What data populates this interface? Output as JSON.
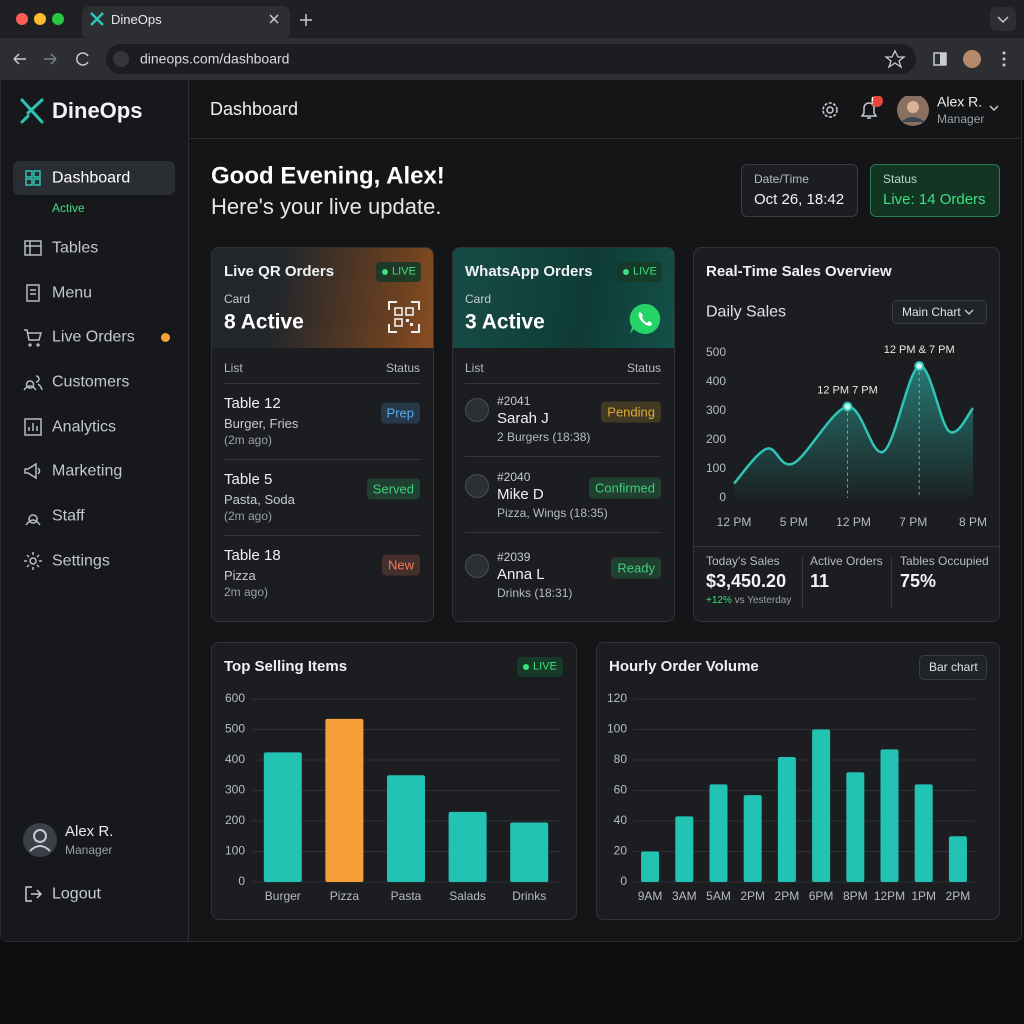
{
  "browser": {
    "tab_title": "DineOps",
    "url": "dineops.com/dashboard"
  },
  "sidebar": {
    "brand": "DineOps",
    "nav": [
      {
        "label": "Dashboard",
        "status": "Active"
      },
      {
        "label": "Tables"
      },
      {
        "label": "Menu"
      },
      {
        "label": "Live Orders",
        "alert": true
      },
      {
        "label": "Customers"
      },
      {
        "label": "Analytics"
      },
      {
        "label": "Marketing"
      },
      {
        "label": "Staff"
      },
      {
        "label": "Settings"
      }
    ],
    "user": {
      "name": "Alex R.",
      "role": "Manager"
    },
    "logout": "Logout"
  },
  "header": {
    "title": "Dashboard",
    "notification_badge": "!",
    "user": {
      "name": "Alex R.",
      "role": "Manager"
    }
  },
  "greeting": {
    "headline": "Good Evening, Alex!",
    "subline": "Here's your live update."
  },
  "info": [
    {
      "label": "Date/Time",
      "value": "Oct 26, 18:42"
    },
    {
      "label": "Status",
      "value": "Live: 14 Orders"
    }
  ],
  "order_cards": [
    {
      "title": "Live QR Orders",
      "badge": "LIVE",
      "kicker": "Card",
      "count": "8 Active",
      "columns": [
        "List",
        "Status"
      ],
      "rows": [
        {
          "title": "Table 12",
          "detail": "Burger, Fries",
          "time": "(2m ago)",
          "status": "Prep",
          "status_color": "#5aa9f0"
        },
        {
          "title": "Table 5",
          "detail": "Pasta, Soda",
          "time": "(2m ago)",
          "status": "Served",
          "status_color": "#3ecf7a"
        },
        {
          "title": "Table 18",
          "detail": "Pizza",
          "time": "2m ago)",
          "status": "New",
          "status_color": "#f07a5a"
        }
      ]
    },
    {
      "title": "WhatsApp Orders",
      "badge": "LIVE",
      "kicker": "Card",
      "count": "3 Active",
      "columns": [
        "List",
        "Status"
      ],
      "rows": [
        {
          "id": "#2041",
          "title": "Sarah J",
          "detail": "2 Burgers (18:38)",
          "status": "Pending",
          "status_color": "#e0a83a"
        },
        {
          "id": "#2040",
          "title": "Mike D",
          "detail": "Pizza, Wings (18:35)",
          "status": "Confirmed",
          "status_color": "#3ecf7a"
        },
        {
          "id": "#2039",
          "title": "Anna L",
          "detail": "Drinks (18:31)",
          "status": "Ready",
          "status_color": "#3ecf7a"
        }
      ]
    }
  ],
  "sales_card": {
    "title": "Real-Time Sales Overview",
    "dropdown": "Main Chart",
    "stats": [
      {
        "label": "Today's Sales",
        "value": "$3,450.20",
        "change": "+12%",
        "change_note": "vs Yesterday"
      },
      {
        "label": "Active Orders",
        "value": "11"
      },
      {
        "label": "Tables Occupied",
        "value": "75%"
      }
    ]
  },
  "chart_data": [
    {
      "type": "line",
      "title": "Daily Sales",
      "color": "#2ec4b6",
      "x": [
        0,
        0.55,
        1.0,
        1.9,
        2.5,
        3.1,
        3.6,
        4.0
      ],
      "values": [
        50,
        170,
        120,
        315,
        160,
        455,
        230,
        310
      ],
      "xlim": [
        0,
        4
      ],
      "xticks": [
        {
          "value": 0,
          "label": "12 PM"
        },
        {
          "value": 1,
          "label": "5 PM"
        },
        {
          "value": 2,
          "label": "12 PM"
        },
        {
          "value": 3,
          "label": "7 PM"
        },
        {
          "value": 4,
          "label": "8 PM"
        }
      ],
      "ylim": [
        0,
        500
      ],
      "yticks": [
        0,
        100,
        200,
        300,
        400,
        500
      ],
      "grid": false,
      "annotations": [
        {
          "text": "12 PM 7 PM",
          "x": 1.9
        },
        {
          "text": "12 PM & 7 PM",
          "x": 3.1
        }
      ]
    },
    {
      "type": "bar",
      "title": "Top Selling Items",
      "badge": "LIVE",
      "categories": [
        "Burger",
        "Pizza",
        "Pasta",
        "Salads",
        "Drinks"
      ],
      "values": [
        425,
        535,
        350,
        230,
        195
      ],
      "colors": [
        "#22c3b3",
        "#f7a03a",
        "#22c3b3",
        "#22c3b3",
        "#22c3b3"
      ],
      "ylim": [
        0,
        600
      ],
      "yticks": [
        0,
        100,
        200,
        300,
        400,
        500,
        600
      ],
      "grid": true
    },
    {
      "type": "bar",
      "title": "Hourly Order Volume",
      "button": "Bar chart",
      "categories": [
        "9AM",
        "3AM",
        "5AM",
        "2PM",
        "2PM",
        "6PM",
        "8PM",
        "12PM",
        "1PM",
        "2PM"
      ],
      "values": [
        20,
        43,
        64,
        57,
        82,
        100,
        72,
        87,
        64,
        30
      ],
      "color": "#22c3b3",
      "ylim": [
        0,
        120
      ],
      "yticks": [
        0,
        20,
        40,
        60,
        80,
        100,
        120
      ],
      "grid": true
    }
  ]
}
